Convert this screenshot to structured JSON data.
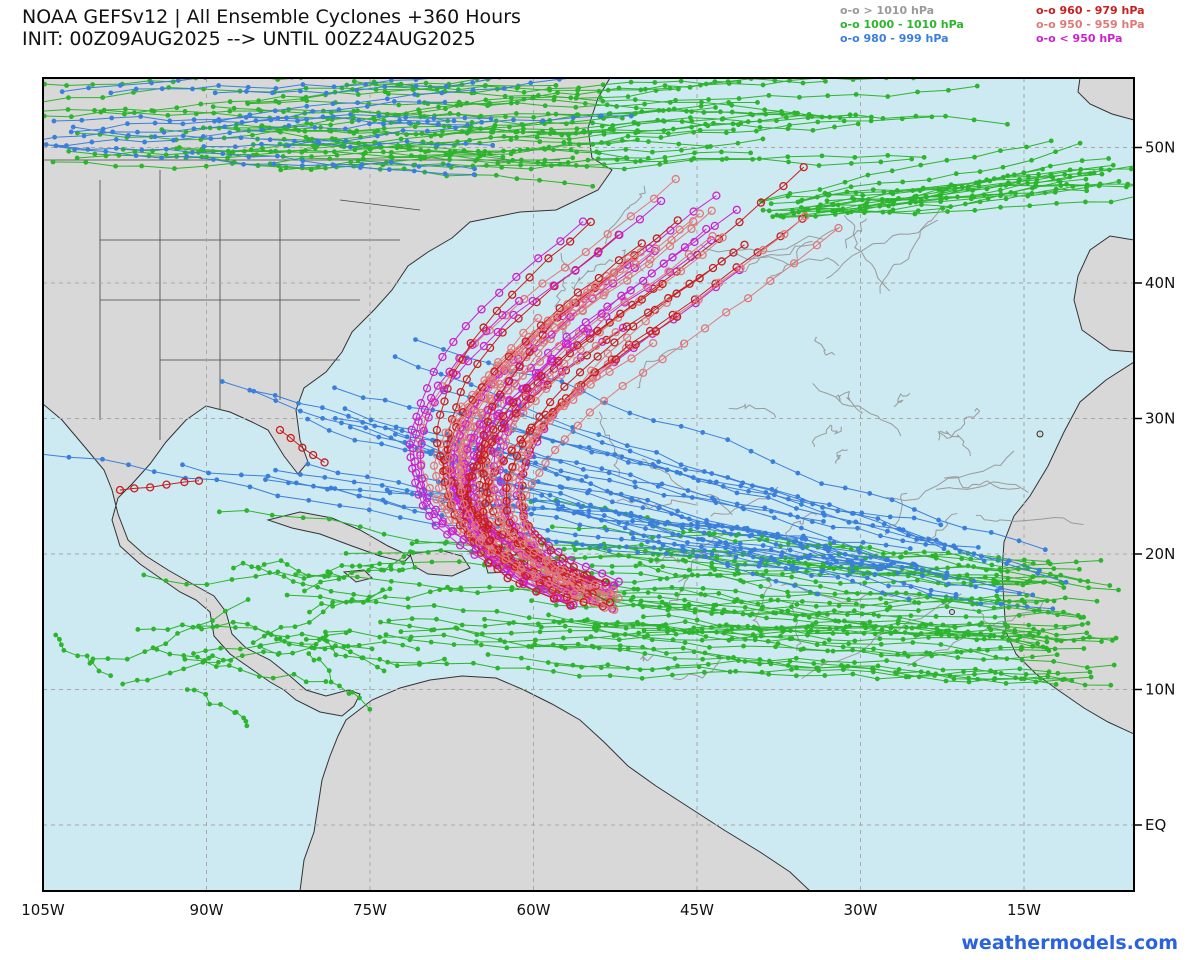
{
  "header": {
    "title_line1": "NOAA GEFSv12 | All Ensemble Cyclones +360 Hours",
    "title_line2": "INIT: 00Z09AUG2025 --> UNTIL 00Z24AUG2025"
  },
  "legend": [
    {
      "text": "o-o > 1010 hPa",
      "color": "#9a9a9a"
    },
    {
      "text": "o-o 1000 - 1010 hPa",
      "color": "#2db52d"
    },
    {
      "text": "o-o 980 - 999 hPa",
      "color": "#3a7fdc"
    },
    {
      "text": "o-o 960 - 979 hPa",
      "color": "#c81e1e"
    },
    {
      "text": "o-o 950 - 959 hPa",
      "color": "#e07878"
    },
    {
      "text": "o-o < 950 hPa",
      "color": "#cc22cc"
    }
  ],
  "axes": {
    "lon_labels": [
      "105W",
      "90W",
      "75W",
      "60W",
      "45W",
      "30W",
      "15W"
    ],
    "lat_labels": [
      "50N",
      "40N",
      "30N",
      "20N",
      "10N",
      "EQ"
    ]
  },
  "colors": {
    "ocean": "#cde9f2",
    "land": "#d8d8d8",
    "grid": "#a8a8a8"
  },
  "brand": "weathermodels.com"
}
